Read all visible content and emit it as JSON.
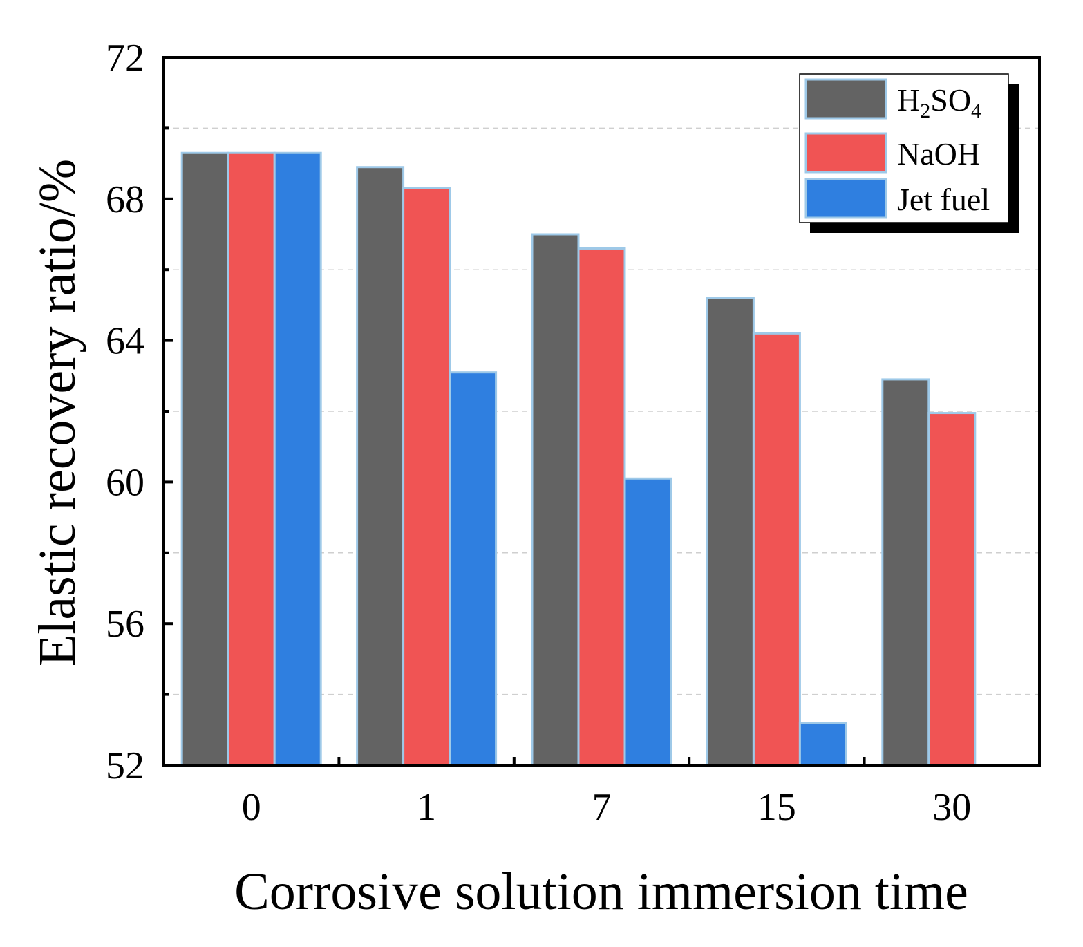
{
  "chart_data": {
    "type": "bar",
    "title": "",
    "xlabel": "Corrosive solution immersion time",
    "ylabel": "Elastic recovery ratio/%",
    "categories": [
      "0",
      "1",
      "7",
      "15",
      "30"
    ],
    "ylim": [
      52,
      72
    ],
    "yticks": [
      "52",
      "56",
      "60",
      "64",
      "68",
      "72"
    ],
    "grid": "horizontal dashed at 2-unit minor intervals",
    "legend_position": "top-right",
    "series": [
      {
        "name": "H2SO4",
        "label_main": "H",
        "label_sub1": "2",
        "label_mid": "SO",
        "label_sub2": "4",
        "color": "#636363",
        "values": [
          69.3,
          68.9,
          67.0,
          65.2,
          62.9
        ]
      },
      {
        "name": "NaOH",
        "color": "#f05454",
        "values": [
          69.3,
          68.3,
          66.6,
          64.2,
          61.95
        ]
      },
      {
        "name": "Jet fuel",
        "color": "#2f7fe0",
        "values": [
          69.3,
          63.1,
          60.1,
          53.2,
          null
        ]
      }
    ],
    "bar_edge_color": "#9ec9e8"
  }
}
